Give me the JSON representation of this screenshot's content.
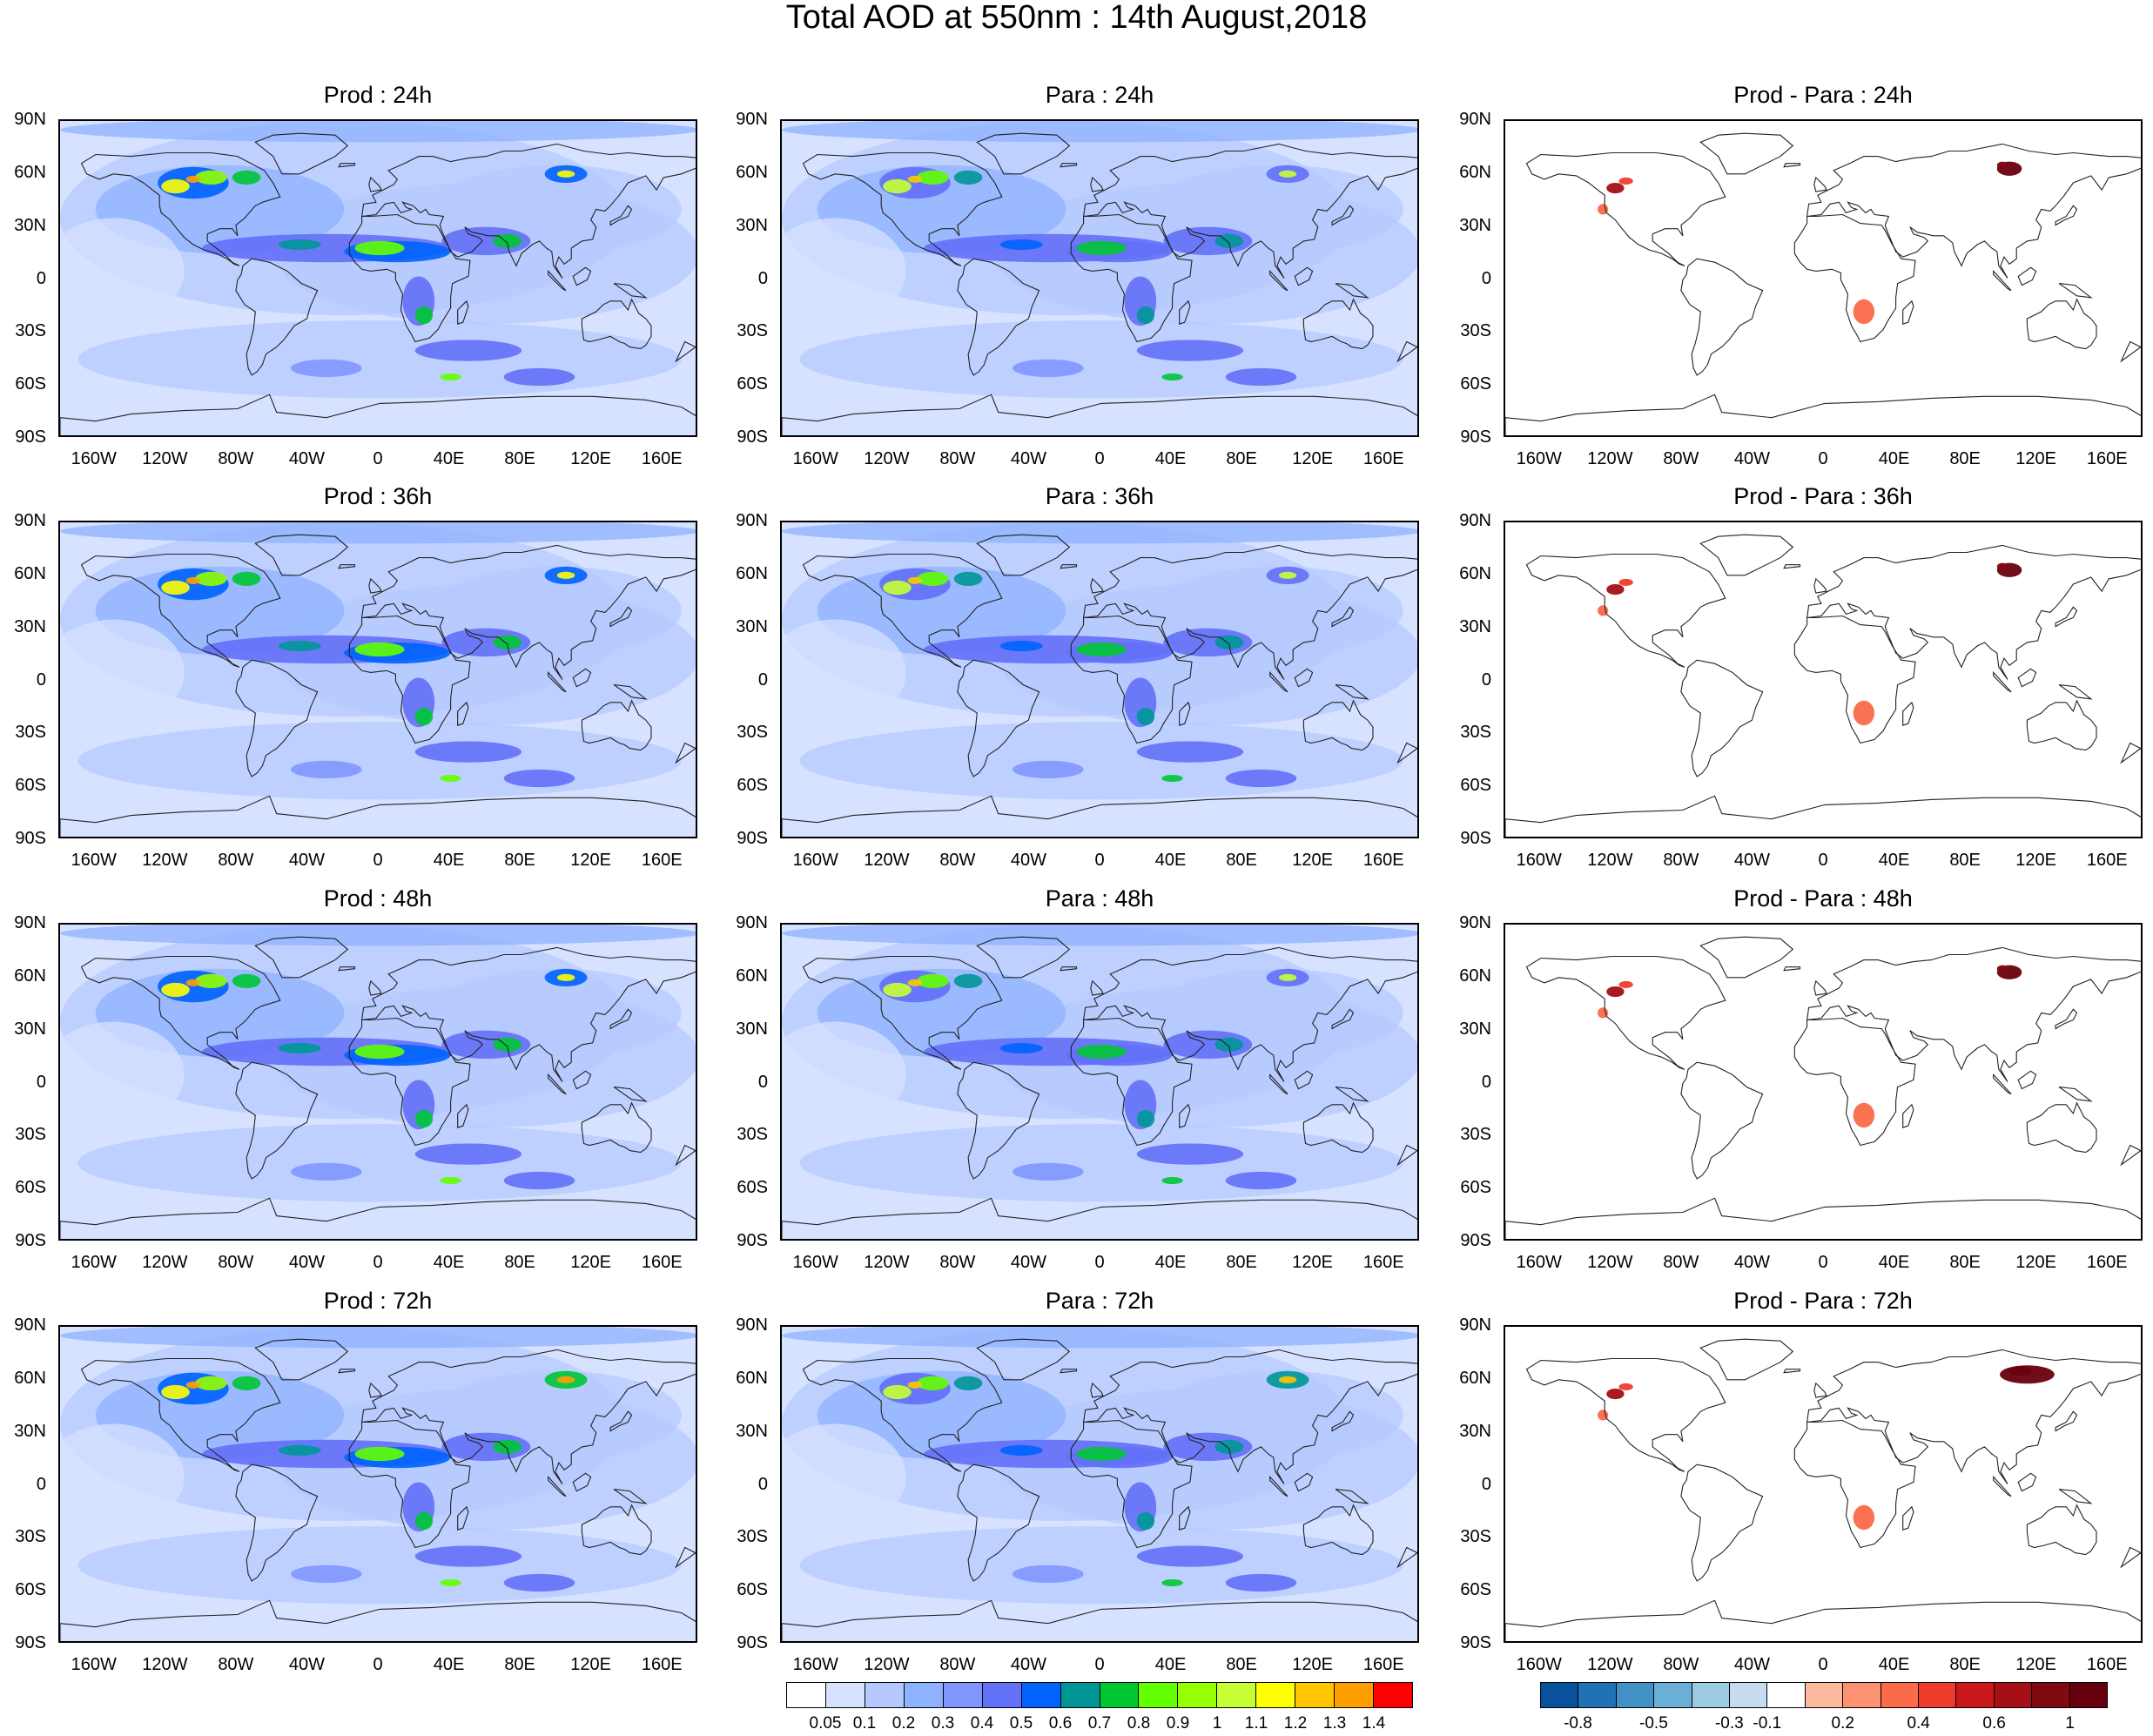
{
  "title": "Total AOD at 550nm : 14th August,2018",
  "lat_labels": [
    "90N",
    "60N",
    "30N",
    "0",
    "30S",
    "60S",
    "90S"
  ],
  "lon_labels": [
    "160W",
    "120W",
    "80W",
    "40W",
    "0",
    "40E",
    "80E",
    "120E",
    "160E"
  ],
  "rows": [
    {
      "forecast": "24h",
      "titles": [
        "Prod : 24h",
        "Para : 24h",
        "Prod - Para : 24h"
      ]
    },
    {
      "forecast": "36h",
      "titles": [
        "Prod : 36h",
        "Para : 36h",
        "Prod - Para : 36h"
      ]
    },
    {
      "forecast": "48h",
      "titles": [
        "Prod : 48h",
        "Para : 48h",
        "Prod - Para : 48h"
      ]
    },
    {
      "forecast": "72h",
      "titles": [
        "Prod : 72h",
        "Para : 72h",
        "Prod - Para : 72h"
      ]
    }
  ],
  "aod_colorbar": {
    "labels": [
      "0.05",
      "0.1",
      "0.2",
      "0.3",
      "0.4",
      "0.5",
      "0.6",
      "0.7",
      "0.8",
      "0.9",
      "1",
      "1.1",
      "1.2",
      "1.3",
      "1.4"
    ],
    "colors": [
      "#ffffff",
      "#d6e2ff",
      "#b5c9ff",
      "#8eb2ff",
      "#7f96ff",
      "#6370f8",
      "#0063ff",
      "#009696",
      "#00c633",
      "#63ff00",
      "#96ff00",
      "#c6ff33",
      "#ffff00",
      "#ffc600",
      "#ff9e00",
      "#ff0000"
    ]
  },
  "diff_colorbar": {
    "labels": [
      "-0.8",
      "-0.5",
      "-0.3",
      "-0.1",
      "0.2",
      "0.4",
      "0.6",
      "1"
    ],
    "colors": [
      "#08519c",
      "#2171b5",
      "#4292c6",
      "#6baed6",
      "#9ecae1",
      "#c6dbef",
      "#ffffff",
      "#fcbba1",
      "#fc9272",
      "#fb6a4a",
      "#ef3b2c",
      "#cb181d",
      "#a50f15",
      "#800a0f",
      "#67000d"
    ]
  }
}
